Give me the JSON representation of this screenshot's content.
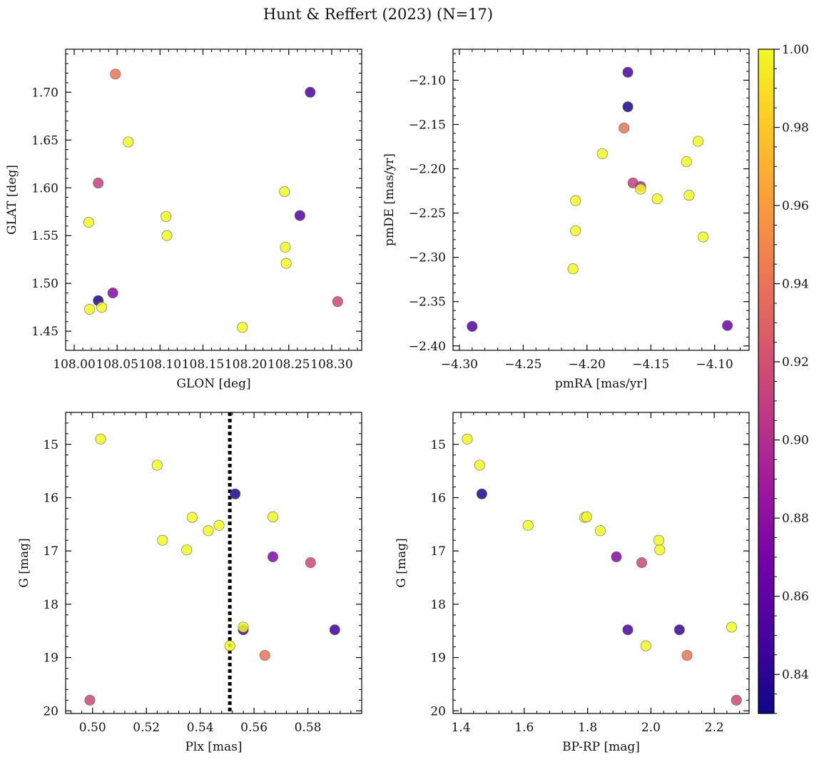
{
  "title": "Hunt & Reffert (2023) (N=17)",
  "colorbar": {
    "min": 0.83,
    "max": 1.0,
    "ticks": [
      0.84,
      0.86,
      0.88,
      0.9,
      0.92,
      0.94,
      0.96,
      0.98,
      1.0
    ],
    "tick_labels": [
      "0.84",
      "0.86",
      "0.88",
      "0.90",
      "0.92",
      "0.94",
      "0.96",
      "0.98",
      "1.00"
    ],
    "colormap": "plasma",
    "stops": [
      "#0d0887",
      "#46039f",
      "#7201a8",
      "#9c179e",
      "#bd3786",
      "#d8576b",
      "#ed7953",
      "#fb9f3a",
      "#fdca26",
      "#f0f921"
    ]
  },
  "chart_data": [
    {
      "type": "scatter",
      "id": "glon-glat",
      "xlabel": "GLON [deg]",
      "ylabel": "GLAT [deg]",
      "xlim": [
        107.99,
        108.335
      ],
      "ylim": [
        1.43,
        1.745
      ],
      "invert_y": false,
      "xticks": [
        108.0,
        108.05,
        108.1,
        108.15,
        108.2,
        108.25,
        108.3
      ],
      "xtick_labels": [
        "108.00",
        "108.05",
        "108.10",
        "108.15",
        "108.20",
        "108.25",
        "108.30"
      ],
      "yticks": [
        1.45,
        1.5,
        1.55,
        1.6,
        1.65,
        1.7
      ],
      "ytick_labels": [
        "1.45",
        "1.50",
        "1.55",
        "1.60",
        "1.65",
        "1.70"
      ],
      "points": [
        {
          "x": 108.048,
          "y": 1.719,
          "c": 0.94
        },
        {
          "x": 108.275,
          "y": 1.7,
          "c": 0.85
        },
        {
          "x": 108.063,
          "y": 1.648,
          "c": 1.0
        },
        {
          "x": 108.028,
          "y": 1.605,
          "c": 0.91
        },
        {
          "x": 108.245,
          "y": 1.596,
          "c": 1.0
        },
        {
          "x": 108.263,
          "y": 1.571,
          "c": 0.855
        },
        {
          "x": 108.107,
          "y": 1.57,
          "c": 1.0
        },
        {
          "x": 108.017,
          "y": 1.564,
          "c": 1.0
        },
        {
          "x": 108.108,
          "y": 1.55,
          "c": 1.0
        },
        {
          "x": 108.246,
          "y": 1.538,
          "c": 1.0
        },
        {
          "x": 108.247,
          "y": 1.521,
          "c": 1.0
        },
        {
          "x": 108.045,
          "y": 1.49,
          "c": 0.875
        },
        {
          "x": 108.028,
          "y": 1.482,
          "c": 0.835
        },
        {
          "x": 108.307,
          "y": 1.481,
          "c": 0.915
        },
        {
          "x": 108.032,
          "y": 1.475,
          "c": 1.0
        },
        {
          "x": 108.018,
          "y": 1.473,
          "c": 1.0
        },
        {
          "x": 108.196,
          "y": 1.454,
          "c": 1.0
        }
      ]
    },
    {
      "type": "scatter",
      "id": "pmra-pmde",
      "xlabel": "pmRA [mas/yr]",
      "ylabel": "pmDE [mas/yr]",
      "xlim": [
        -4.305,
        -4.073
      ],
      "ylim": [
        -2.405,
        -2.065
      ],
      "invert_y": false,
      "xticks": [
        -4.3,
        -4.25,
        -4.2,
        -4.15,
        -4.1
      ],
      "xtick_labels": [
        "−4.30",
        "−4.25",
        "−4.20",
        "−4.15",
        "−4.10"
      ],
      "yticks": [
        -2.4,
        -2.35,
        -2.3,
        -2.25,
        -2.2,
        -2.15,
        -2.1
      ],
      "ytick_labels": [
        "−2.40",
        "−2.35",
        "−2.30",
        "−2.25",
        "−2.20",
        "−2.15",
        "−2.10"
      ],
      "points": [
        {
          "x": -4.168,
          "y": -2.091,
          "c": 0.85
        },
        {
          "x": -4.168,
          "y": -2.13,
          "c": 0.835
        },
        {
          "x": -4.171,
          "y": -2.154,
          "c": 0.94
        },
        {
          "x": -4.113,
          "y": -2.169,
          "c": 1.0
        },
        {
          "x": -4.188,
          "y": -2.183,
          "c": 1.0
        },
        {
          "x": -4.122,
          "y": -2.192,
          "c": 1.0
        },
        {
          "x": -4.164,
          "y": -2.216,
          "c": 0.91
        },
        {
          "x": -4.158,
          "y": -2.22,
          "c": 0.9
        },
        {
          "x": -4.158,
          "y": -2.223,
          "c": 1.0
        },
        {
          "x": -4.12,
          "y": -2.23,
          "c": 1.0
        },
        {
          "x": -4.209,
          "y": -2.236,
          "c": 1.0
        },
        {
          "x": -4.145,
          "y": -2.234,
          "c": 1.0
        },
        {
          "x": -4.209,
          "y": -2.27,
          "c": 1.0
        },
        {
          "x": -4.109,
          "y": -2.277,
          "c": 1.0
        },
        {
          "x": -4.211,
          "y": -2.313,
          "c": 1.0
        },
        {
          "x": -4.29,
          "y": -2.378,
          "c": 0.855
        },
        {
          "x": -4.09,
          "y": -2.377,
          "c": 0.865
        }
      ]
    },
    {
      "type": "scatter",
      "id": "plx-g",
      "xlabel": "Plx [mas]",
      "ylabel": "G [mag]",
      "xlim": [
        0.49,
        0.6
      ],
      "ylim": [
        20.05,
        14.4
      ],
      "invert_y": true,
      "xticks": [
        0.5,
        0.52,
        0.54,
        0.56,
        0.58
      ],
      "xtick_labels": [
        "0.50",
        "0.52",
        "0.54",
        "0.56",
        "0.58"
      ],
      "yticks": [
        15,
        16,
        17,
        18,
        19,
        20
      ],
      "ytick_labels": [
        "15",
        "16",
        "17",
        "18",
        "19",
        "20"
      ],
      "vline": {
        "x": 0.551,
        "style": "dotted"
      },
      "points": [
        {
          "x": 0.503,
          "y": 14.9,
          "c": 1.0
        },
        {
          "x": 0.524,
          "y": 15.39,
          "c": 1.0
        },
        {
          "x": 0.553,
          "y": 15.93,
          "c": 0.835
        },
        {
          "x": 0.537,
          "y": 16.37,
          "c": 1.0
        },
        {
          "x": 0.567,
          "y": 16.36,
          "c": 1.0
        },
        {
          "x": 0.547,
          "y": 16.52,
          "c": 1.0
        },
        {
          "x": 0.543,
          "y": 16.62,
          "c": 1.0
        },
        {
          "x": 0.526,
          "y": 16.8,
          "c": 1.0
        },
        {
          "x": 0.535,
          "y": 16.98,
          "c": 1.0
        },
        {
          "x": 0.567,
          "y": 17.11,
          "c": 0.875
        },
        {
          "x": 0.581,
          "y": 17.22,
          "c": 0.915
        },
        {
          "x": 0.556,
          "y": 18.48,
          "c": 0.85
        },
        {
          "x": 0.556,
          "y": 18.43,
          "c": 1.0
        },
        {
          "x": 0.59,
          "y": 18.48,
          "c": 0.845
        },
        {
          "x": 0.551,
          "y": 18.78,
          "c": 1.0
        },
        {
          "x": 0.564,
          "y": 18.96,
          "c": 0.94
        },
        {
          "x": 0.499,
          "y": 19.8,
          "c": 0.915
        }
      ]
    },
    {
      "type": "scatter",
      "id": "bprp-g",
      "xlabel": "BP-RP [mag]",
      "ylabel": "G [mag]",
      "xlim": [
        1.375,
        2.31
      ],
      "ylim": [
        20.05,
        14.4
      ],
      "invert_y": true,
      "xticks": [
        1.4,
        1.6,
        1.8,
        2.0,
        2.2
      ],
      "xtick_labels": [
        "1.4",
        "1.6",
        "1.8",
        "2.0",
        "2.2"
      ],
      "yticks": [
        15,
        16,
        17,
        18,
        19,
        20
      ],
      "ytick_labels": [
        "15",
        "16",
        "17",
        "18",
        "19",
        "20"
      ],
      "points": [
        {
          "x": 1.42,
          "y": 14.9,
          "c": 1.0
        },
        {
          "x": 1.459,
          "y": 15.39,
          "c": 1.0
        },
        {
          "x": 1.466,
          "y": 15.93,
          "c": 0.835
        },
        {
          "x": 1.612,
          "y": 16.52,
          "c": 1.0
        },
        {
          "x": 1.791,
          "y": 16.37,
          "c": 1.0
        },
        {
          "x": 1.797,
          "y": 16.36,
          "c": 1.0
        },
        {
          "x": 1.84,
          "y": 16.62,
          "c": 1.0
        },
        {
          "x": 2.025,
          "y": 16.8,
          "c": 1.0
        },
        {
          "x": 2.028,
          "y": 16.98,
          "c": 1.0
        },
        {
          "x": 1.891,
          "y": 17.11,
          "c": 0.875
        },
        {
          "x": 1.971,
          "y": 17.22,
          "c": 0.915
        },
        {
          "x": 1.927,
          "y": 18.48,
          "c": 0.85
        },
        {
          "x": 2.09,
          "y": 18.48,
          "c": 0.845
        },
        {
          "x": 2.255,
          "y": 18.43,
          "c": 1.0
        },
        {
          "x": 1.984,
          "y": 18.78,
          "c": 1.0
        },
        {
          "x": 2.114,
          "y": 18.96,
          "c": 0.94
        },
        {
          "x": 2.27,
          "y": 19.8,
          "c": 0.915
        }
      ]
    }
  ]
}
